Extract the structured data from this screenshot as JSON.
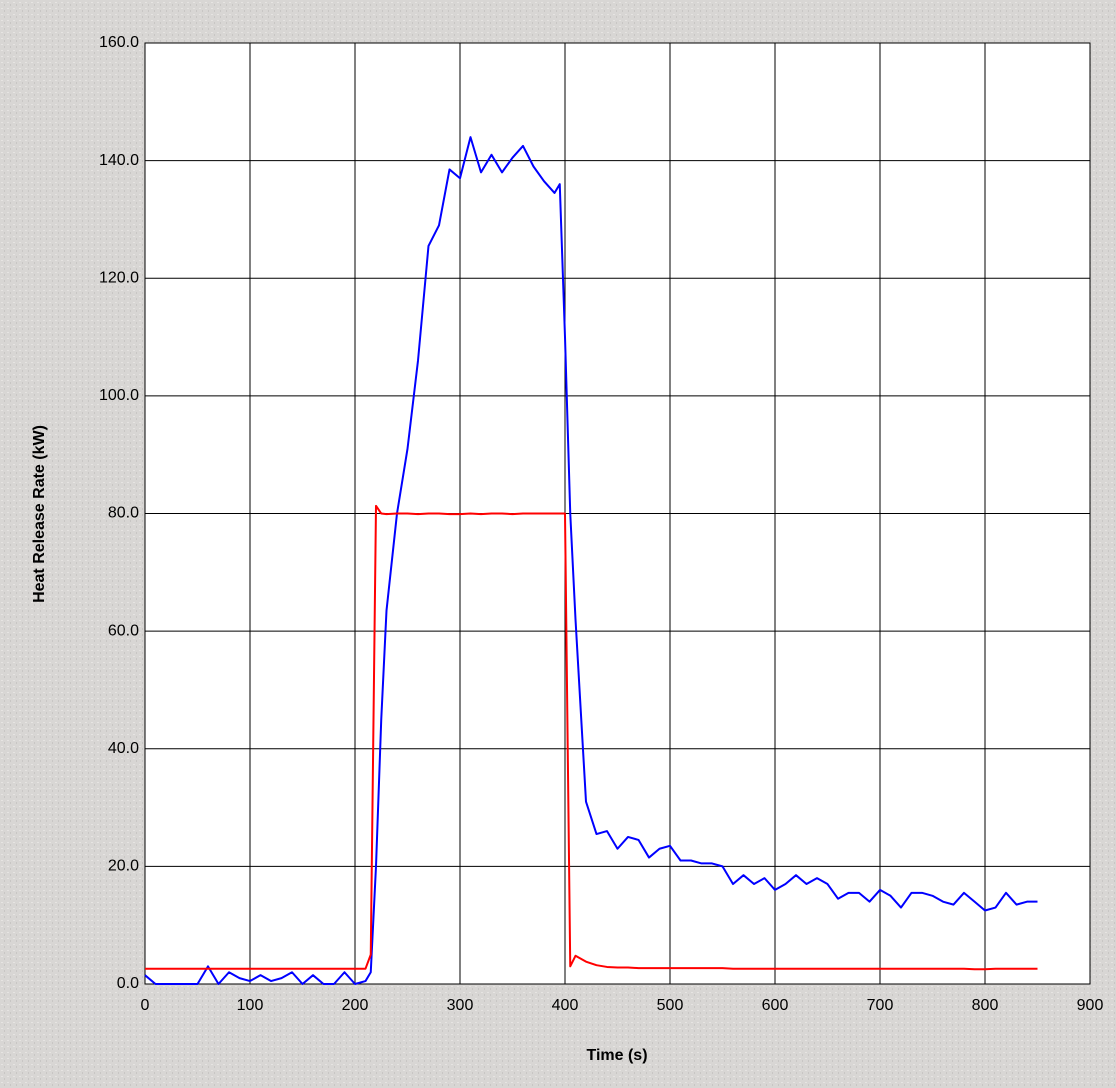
{
  "chart_data": {
    "type": "line",
    "x_label": "Time (s)",
    "y_label": "Heat Release Rate (kW)",
    "x": [
      0,
      10,
      20,
      30,
      40,
      50,
      60,
      70,
      80,
      90,
      100,
      110,
      120,
      130,
      140,
      150,
      160,
      170,
      180,
      190,
      200,
      210,
      215,
      220,
      225,
      230,
      240,
      250,
      260,
      270,
      280,
      290,
      300,
      310,
      320,
      330,
      340,
      350,
      360,
      370,
      380,
      390,
      395,
      400,
      405,
      410,
      420,
      430,
      440,
      450,
      460,
      470,
      480,
      490,
      500,
      510,
      520,
      530,
      540,
      550,
      560,
      570,
      580,
      590,
      600,
      610,
      620,
      630,
      640,
      650,
      660,
      670,
      680,
      690,
      700,
      710,
      720,
      730,
      740,
      750,
      760,
      770,
      780,
      790,
      800,
      810,
      820,
      830,
      840,
      850
    ],
    "series": [
      {
        "color": "#0000ff",
        "values": [
          1.5,
          0,
          0,
          0,
          0,
          0,
          3,
          0,
          2,
          1,
          0.5,
          1.5,
          0.5,
          1,
          2,
          0,
          1.5,
          0,
          0,
          2,
          0,
          0.5,
          2,
          20,
          45,
          63.5,
          80,
          91,
          106,
          125.5,
          129,
          138.5,
          137,
          144,
          138,
          141,
          138,
          140.5,
          142.5,
          139,
          136.5,
          134.5,
          136,
          110,
          80,
          62,
          31,
          25.5,
          26,
          23,
          25,
          24.5,
          21.5,
          23,
          23.5,
          21,
          21,
          20.5,
          20.5,
          20,
          17,
          18.5,
          17,
          18,
          16,
          17,
          18.5,
          17,
          18,
          17,
          14.5,
          15.5,
          15.5,
          14,
          16,
          15,
          13,
          15.5,
          15.5,
          15,
          14,
          13.5,
          15.5,
          14,
          12.5,
          13,
          15.5,
          13.5,
          14,
          14
        ]
      },
      {
        "color": "#ff0000",
        "values": [
          2.6,
          2.6,
          2.6,
          2.6,
          2.6,
          2.6,
          2.6,
          2.6,
          2.6,
          2.6,
          2.6,
          2.6,
          2.6,
          2.6,
          2.6,
          2.6,
          2.6,
          2.6,
          2.6,
          2.6,
          2.6,
          2.6,
          5,
          81.3,
          80,
          79.9,
          80,
          80,
          79.9,
          80,
          80,
          79.9,
          79.9,
          80,
          79.9,
          80,
          80,
          79.9,
          80,
          80,
          80,
          80,
          80,
          80,
          3,
          4.8,
          3.8,
          3.2,
          2.9,
          2.8,
          2.8,
          2.7,
          2.7,
          2.7,
          2.7,
          2.7,
          2.7,
          2.7,
          2.7,
          2.7,
          2.6,
          2.6,
          2.6,
          2.6,
          2.6,
          2.6,
          2.6,
          2.6,
          2.6,
          2.6,
          2.6,
          2.6,
          2.6,
          2.6,
          2.6,
          2.6,
          2.6,
          2.6,
          2.6,
          2.6,
          2.6,
          2.6,
          2.6,
          2.5,
          2.5,
          2.6,
          2.6,
          2.6,
          2.6,
          2.6
        ]
      }
    ],
    "xlim": [
      0,
      900
    ],
    "xticks": [
      0,
      100,
      200,
      300,
      400,
      500,
      600,
      700,
      800,
      900
    ],
    "ylim": [
      0,
      160
    ],
    "yticks": [
      {
        "value": 0,
        "label": "0.0"
      },
      {
        "value": 20,
        "label": "20.0"
      },
      {
        "value": 40,
        "label": "40.0"
      },
      {
        "value": 60,
        "label": "60.0"
      },
      {
        "value": 80,
        "label": "80.0"
      },
      {
        "value": 100,
        "label": "100.0"
      },
      {
        "value": 120,
        "label": "120.0"
      },
      {
        "value": 140,
        "label": "140.0"
      },
      {
        "value": 160,
        "label": "160.0"
      }
    ],
    "grid": true
  }
}
